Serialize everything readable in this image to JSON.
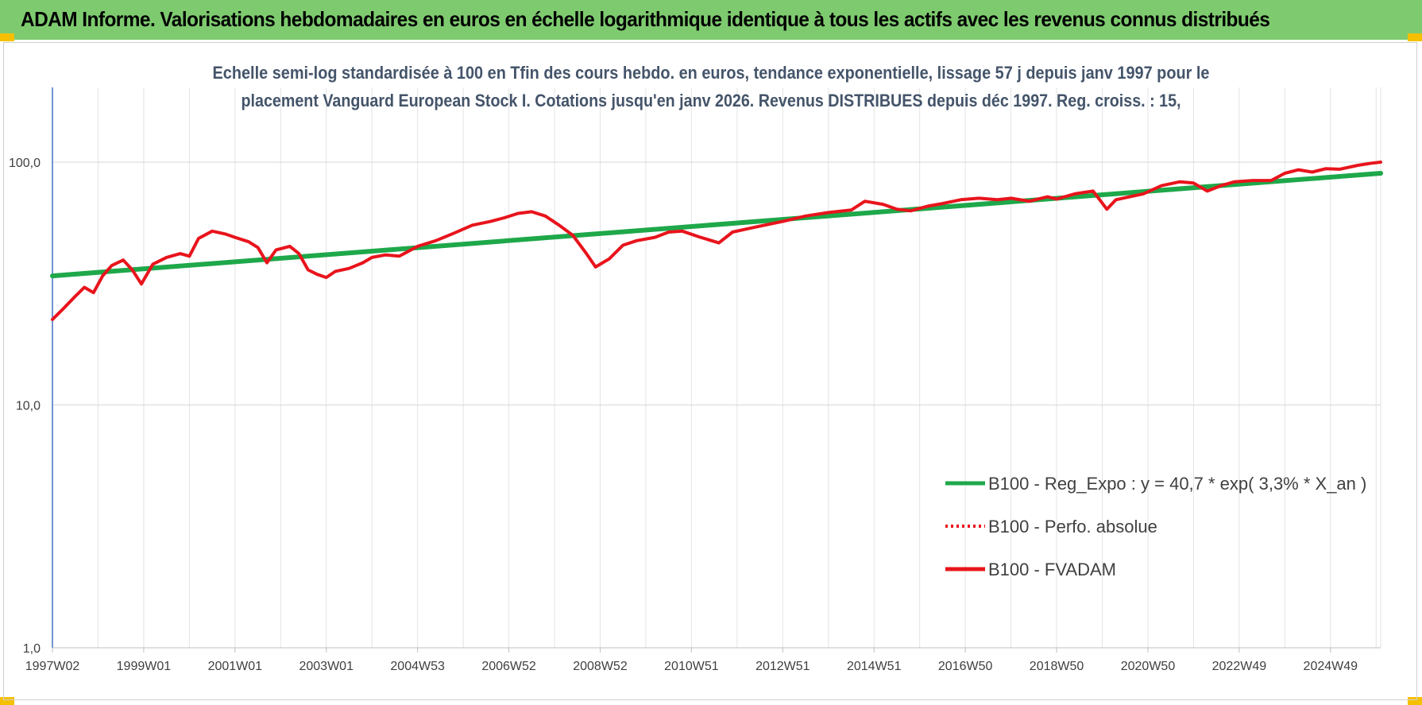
{
  "header": {
    "title": "ADAM Informe. Valorisations hebdomadaires en euros en échelle logarithmique identique à tous les actifs avec les revenus connus distribués"
  },
  "chart_data": {
    "type": "line",
    "title_lines": [
      "Echelle semi-log standardisée à 100 en Tfin des cours hebdo. en euros, tendance exponentielle, lissage 57 j depuis janv 1997 pour le",
      "placement Vanguard European Stock I.  Cotations jusqu'en janv 2026. Revenus DISTRIBUES depuis déc 1997. Reg. croiss. : 15,"
    ],
    "yscale": "log",
    "ylim": [
      1,
      200
    ],
    "xlim": [
      1997.0,
      2026.1
    ],
    "y_ticks": [
      {
        "value": 1,
        "label": "1,0"
      },
      {
        "value": 10,
        "label": "10,0"
      },
      {
        "value": 100,
        "label": "100,0"
      }
    ],
    "x_ticks": [
      {
        "value": 1997.0,
        "label": "1997W02"
      },
      {
        "value": 1999.0,
        "label": "1999W01"
      },
      {
        "value": 2001.0,
        "label": "2001W01"
      },
      {
        "value": 2003.0,
        "label": "2003W01"
      },
      {
        "value": 2005.0,
        "label": "2004W53"
      },
      {
        "value": 2007.0,
        "label": "2006W52"
      },
      {
        "value": 2009.0,
        "label": "2008W52"
      },
      {
        "value": 2011.0,
        "label": "2010W51"
      },
      {
        "value": 2013.0,
        "label": "2012W51"
      },
      {
        "value": 2015.0,
        "label": "2014W51"
      },
      {
        "value": 2017.0,
        "label": "2016W50"
      },
      {
        "value": 2019.0,
        "label": "2018W50"
      },
      {
        "value": 2021.0,
        "label": "2020W50"
      },
      {
        "value": 2023.0,
        "label": "2022W49"
      },
      {
        "value": 2025.0,
        "label": "2024W49"
      }
    ],
    "grid": true,
    "legend_position": "bottom-right",
    "series": [
      {
        "name": "B100 - Reg_Expo : y = 40,7 * exp( 3,3% *  X_an )",
        "color": "#1ea84a",
        "style": "solid",
        "x": [
          1997.0,
          2026.1
        ],
        "y": [
          34.0,
          90.0
        ]
      },
      {
        "name": "B100 - Perfo. absolue",
        "color": "#e8141c",
        "style": "dotted",
        "x": [],
        "y": []
      },
      {
        "name": "B100 - FVADAM",
        "color": "#e8141c",
        "style": "solid",
        "x": [
          1997.0,
          1997.2,
          1997.5,
          1997.7,
          1997.9,
          1998.1,
          1998.3,
          1998.55,
          1998.75,
          1998.95,
          1999.2,
          1999.5,
          1999.8,
          2000.0,
          2000.2,
          2000.5,
          2000.8,
          2001.0,
          2001.3,
          2001.5,
          2001.7,
          2001.9,
          2002.2,
          2002.4,
          2002.6,
          2002.8,
          2003.0,
          2003.2,
          2003.5,
          2003.8,
          2004.0,
          2004.3,
          2004.6,
          2005.0,
          2005.4,
          2005.8,
          2006.2,
          2006.6,
          2006.9,
          2007.2,
          2007.5,
          2007.8,
          2008.1,
          2008.4,
          2008.7,
          2008.9,
          2009.2,
          2009.5,
          2009.8,
          2010.2,
          2010.5,
          2010.8,
          2011.2,
          2011.6,
          2011.9,
          2012.2,
          2012.6,
          2013.0,
          2013.5,
          2014.0,
          2014.5,
          2014.8,
          2015.2,
          2015.5,
          2015.8,
          2016.2,
          2016.5,
          2016.9,
          2017.3,
          2017.7,
          2018.0,
          2018.4,
          2018.8,
          2019.0,
          2019.4,
          2019.8,
          2020.1,
          2020.3,
          2020.6,
          2020.9,
          2021.3,
          2021.7,
          2022.0,
          2022.3,
          2022.6,
          2022.9,
          2023.3,
          2023.7,
          2024.0,
          2024.3,
          2024.6,
          2024.9,
          2025.2,
          2025.6,
          2025.9,
          2026.1
        ],
        "y": [
          22.5,
          24.5,
          28.0,
          30.5,
          29.0,
          34.0,
          37.5,
          39.5,
          36.0,
          31.5,
          38.0,
          40.5,
          42.0,
          41.0,
          48.5,
          52.0,
          50.5,
          49.0,
          47.0,
          44.5,
          38.5,
          43.5,
          45.0,
          42.0,
          36.0,
          34.5,
          33.5,
          35.5,
          36.5,
          38.5,
          40.5,
          41.5,
          41.0,
          45.0,
          47.5,
          51.0,
          55.0,
          57.0,
          59.0,
          61.5,
          62.5,
          60.0,
          55.0,
          50.0,
          42.0,
          37.0,
          40.0,
          45.5,
          47.5,
          49.0,
          51.5,
          52.0,
          49.0,
          46.5,
          51.5,
          53.0,
          55.0,
          57.0,
          60.0,
          62.0,
          63.5,
          69.0,
          67.0,
          64.0,
          63.0,
          66.0,
          67.5,
          70.0,
          71.0,
          70.0,
          71.0,
          69.0,
          72.0,
          70.5,
          74.0,
          76.0,
          64.0,
          70.0,
          72.0,
          74.0,
          80.0,
          83.0,
          82.0,
          76.0,
          80.0,
          83.0,
          84.0,
          84.0,
          90.0,
          93.0,
          91.0,
          94.0,
          93.5,
          97.0,
          99.0,
          100.0
        ]
      }
    ]
  }
}
